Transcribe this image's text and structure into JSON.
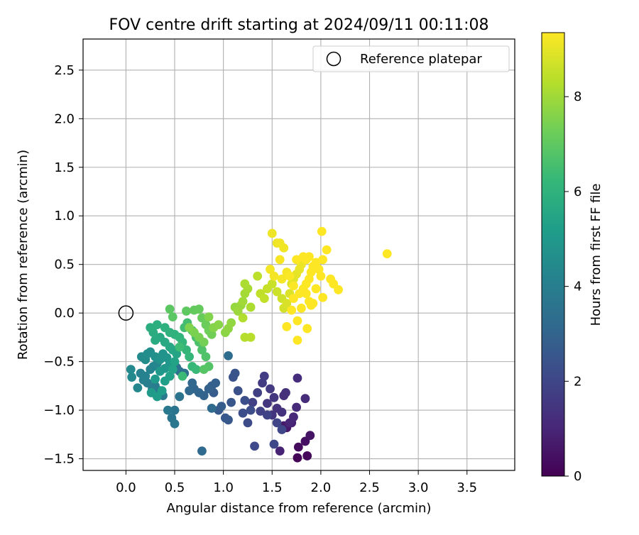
{
  "chart_data": {
    "type": "scatter",
    "title": "FOV centre drift starting at 2024/09/11 00:11:08",
    "xlabel": "Angular distance from reference (arcmin)",
    "ylabel": "Rotation from reference (arcmin)",
    "xlim": [
      -0.44,
      3.99
    ],
    "ylim": [
      -1.62,
      2.82
    ],
    "xticks": [
      0.0,
      0.5,
      1.0,
      1.5,
      2.0,
      2.5,
      3.0,
      3.5
    ],
    "xtick_labels": [
      "0.0",
      "0.5",
      "1.0",
      "1.5",
      "2.0",
      "2.5",
      "3.0",
      "3.5"
    ],
    "yticks": [
      -1.5,
      -1.0,
      -0.5,
      0.0,
      0.5,
      1.0,
      1.5,
      2.0,
      2.5
    ],
    "ytick_labels": [
      "−1.5",
      "−1.0",
      "−0.5",
      "0.0",
      "0.5",
      "1.0",
      "1.5",
      "2.0",
      "2.5"
    ],
    "grid": true,
    "legend": {
      "position": "top-right",
      "entries": [
        "Reference platepar"
      ]
    },
    "reference_point": {
      "x": 0.0,
      "y": 0.0,
      "label": "Reference platepar",
      "marker": "hollow-circle",
      "color": "#000000"
    },
    "colorbar": {
      "label": "Hours from first FF file",
      "range": [
        0,
        9.35
      ],
      "ticks": [
        0,
        2,
        4,
        6,
        8
      ],
      "colormap": "viridis",
      "colors": [
        "#440154",
        "#482878",
        "#3e4989",
        "#31688e",
        "#26828e",
        "#1f9e89",
        "#35b779",
        "#6ece58",
        "#b5de2b",
        "#fde725"
      ]
    },
    "points": [
      [
        1.76,
        -1.49,
        0.1
      ],
      [
        1.86,
        -1.47,
        0.2
      ],
      [
        1.77,
        -1.38,
        0.3
      ],
      [
        1.84,
        -1.32,
        0.4
      ],
      [
        1.89,
        -1.26,
        0.5
      ],
      [
        1.65,
        -1.18,
        0.6
      ],
      [
        1.62,
        -1.16,
        0.7
      ],
      [
        1.7,
        -1.13,
        0.8
      ],
      [
        1.58,
        -1.42,
        0.9
      ],
      [
        1.68,
        -1.13,
        1.0
      ],
      [
        1.72,
        -1.07,
        1.05
      ],
      [
        1.75,
        -0.97,
        1.1
      ],
      [
        1.84,
        -0.88,
        1.15
      ],
      [
        1.76,
        -0.67,
        1.2
      ],
      [
        1.62,
        -0.85,
        1.25
      ],
      [
        1.64,
        -0.82,
        1.3
      ],
      [
        1.6,
        -1.02,
        1.35
      ],
      [
        1.55,
        -0.98,
        1.4
      ],
      [
        1.5,
        -1.05,
        1.45
      ],
      [
        1.45,
        -0.93,
        1.5
      ],
      [
        1.52,
        -0.87,
        1.55
      ],
      [
        1.48,
        -0.78,
        1.6
      ],
      [
        1.4,
        -0.72,
        1.65
      ],
      [
        1.42,
        -0.65,
        1.7
      ],
      [
        1.35,
        -0.82,
        1.75
      ],
      [
        1.3,
        -0.92,
        1.8
      ],
      [
        1.38,
        -1.01,
        1.85
      ],
      [
        1.45,
        -1.05,
        1.9
      ],
      [
        1.55,
        -1.13,
        1.95
      ],
      [
        1.6,
        -1.2,
        2.0
      ],
      [
        1.52,
        -1.35,
        2.05
      ],
      [
        1.32,
        -1.37,
        2.1
      ],
      [
        1.25,
        -1.13,
        2.15
      ],
      [
        1.28,
        -1.0,
        2.2
      ],
      [
        1.2,
        -1.03,
        2.25
      ],
      [
        1.22,
        -0.9,
        2.3
      ],
      [
        1.15,
        -0.8,
        2.35
      ],
      [
        1.1,
        -0.66,
        2.4
      ],
      [
        1.12,
        -0.62,
        2.45
      ],
      [
        1.08,
        -0.92,
        2.5
      ],
      [
        1.05,
        -1.1,
        2.55
      ],
      [
        1.02,
        -1.08,
        2.6
      ],
      [
        0.95,
        -1.0,
        2.65
      ],
      [
        0.98,
        -0.96,
        2.7
      ],
      [
        0.9,
        -0.82,
        2.75
      ],
      [
        0.88,
        -0.75,
        2.8
      ],
      [
        0.92,
        -0.72,
        2.85
      ],
      [
        0.85,
        -0.78,
        2.9
      ],
      [
        0.8,
        -0.85,
        2.95
      ],
      [
        0.75,
        -0.82,
        3.0
      ],
      [
        0.7,
        -0.78,
        3.05
      ],
      [
        0.65,
        -0.8,
        3.1
      ],
      [
        0.68,
        -0.72,
        3.15
      ],
      [
        0.78,
        -1.42,
        3.2
      ],
      [
        0.88,
        -0.98,
        3.25
      ],
      [
        1.05,
        -0.44,
        3.3
      ],
      [
        0.6,
        -0.62,
        3.4
      ],
      [
        0.55,
        -0.6,
        3.45
      ],
      [
        0.52,
        -0.56,
        3.5
      ],
      [
        0.55,
        -0.86,
        3.55
      ],
      [
        0.5,
        -1.0,
        3.6
      ],
      [
        0.47,
        -1.08,
        3.65
      ],
      [
        0.5,
        -1.14,
        3.7
      ],
      [
        0.43,
        -1.0,
        3.75
      ],
      [
        0.38,
        -0.85,
        3.8
      ],
      [
        0.35,
        -0.8,
        3.85
      ],
      [
        0.3,
        -0.75,
        3.9
      ],
      [
        0.27,
        -0.78,
        3.95
      ],
      [
        0.22,
        -0.72,
        4.0
      ],
      [
        0.18,
        -0.69,
        4.05
      ],
      [
        0.15,
        -0.62,
        4.1
      ],
      [
        0.2,
        -0.65,
        4.15
      ],
      [
        0.25,
        -0.58,
        4.2
      ],
      [
        0.28,
        -0.55,
        4.25
      ],
      [
        0.32,
        -0.52,
        4.3
      ],
      [
        0.12,
        -0.77,
        4.35
      ],
      [
        0.06,
        -0.66,
        4.4
      ],
      [
        0.05,
        -0.58,
        4.45
      ],
      [
        0.16,
        -0.45,
        4.5
      ],
      [
        0.2,
        -0.48,
        4.55
      ],
      [
        0.22,
        -0.42,
        4.6
      ],
      [
        0.25,
        -0.4,
        4.65
      ],
      [
        0.3,
        -0.45,
        4.7
      ],
      [
        0.35,
        -0.48,
        4.75
      ],
      [
        0.38,
        -0.42,
        4.8
      ],
      [
        0.42,
        -0.46,
        4.85
      ],
      [
        0.45,
        -0.52,
        4.9
      ],
      [
        0.4,
        -0.57,
        4.95
      ],
      [
        0.35,
        -0.6,
        5.0
      ],
      [
        0.3,
        -0.68,
        5.05
      ],
      [
        0.26,
        -0.82,
        5.1
      ],
      [
        0.32,
        -0.86,
        5.15
      ],
      [
        0.37,
        -0.8,
        5.2
      ],
      [
        0.4,
        -0.7,
        5.25
      ],
      [
        0.45,
        -0.65,
        5.3
      ],
      [
        0.48,
        -0.58,
        5.35
      ],
      [
        0.5,
        -0.5,
        5.4
      ],
      [
        0.52,
        -0.42,
        5.45
      ],
      [
        0.48,
        -0.38,
        5.5
      ],
      [
        0.45,
        -0.35,
        5.55
      ],
      [
        0.4,
        -0.3,
        5.6
      ],
      [
        0.35,
        -0.25,
        5.65
      ],
      [
        0.3,
        -0.28,
        5.7
      ],
      [
        0.28,
        -0.2,
        5.75
      ],
      [
        0.25,
        -0.15,
        5.8
      ],
      [
        0.32,
        -0.12,
        5.85
      ],
      [
        0.4,
        -0.15,
        5.9
      ],
      [
        0.45,
        -0.2,
        5.95
      ],
      [
        0.5,
        -0.22,
        6.0
      ],
      [
        0.55,
        -0.25,
        6.05
      ],
      [
        0.58,
        -0.3,
        6.1
      ],
      [
        0.62,
        -0.38,
        6.15
      ],
      [
        0.65,
        -0.45,
        6.2
      ],
      [
        0.68,
        -0.55,
        6.25
      ],
      [
        0.72,
        -0.58,
        6.3
      ],
      [
        0.58,
        -0.65,
        6.35
      ],
      [
        0.55,
        -0.35,
        6.4
      ],
      [
        0.6,
        -0.15,
        6.45
      ],
      [
        0.63,
        -0.1,
        6.5
      ],
      [
        0.68,
        -0.18,
        6.55
      ],
      [
        0.72,
        -0.25,
        6.6
      ],
      [
        0.75,
        -0.3,
        6.65
      ],
      [
        0.78,
        -0.38,
        6.7
      ],
      [
        0.82,
        -0.45,
        6.75
      ],
      [
        0.85,
        -0.55,
        6.8
      ],
      [
        0.8,
        -0.58,
        6.85
      ],
      [
        0.48,
        -0.04,
        6.9
      ],
      [
        0.45,
        0.04,
        6.95
      ],
      [
        0.62,
        0.02,
        7.0
      ],
      [
        0.7,
        0.03,
        7.05
      ],
      [
        0.75,
        0.04,
        7.1
      ],
      [
        0.78,
        -0.05,
        7.15
      ],
      [
        0.82,
        -0.12,
        7.2
      ],
      [
        0.85,
        -0.18,
        7.25
      ],
      [
        0.88,
        -0.22,
        7.3
      ],
      [
        0.8,
        -0.3,
        7.35
      ],
      [
        0.75,
        -0.25,
        7.4
      ],
      [
        0.7,
        -0.2,
        7.45
      ],
      [
        0.65,
        -0.15,
        7.5
      ],
      [
        0.85,
        -0.04,
        7.55
      ],
      [
        0.9,
        -0.15,
        7.6
      ],
      [
        0.95,
        -0.12,
        7.65
      ],
      [
        1.02,
        -0.2,
        7.7
      ],
      [
        1.05,
        -0.16,
        7.75
      ],
      [
        1.08,
        -0.1,
        7.8
      ],
      [
        1.12,
        0.06,
        7.85
      ],
      [
        1.18,
        0.08,
        7.9
      ],
      [
        1.15,
        0.02,
        7.95
      ],
      [
        1.2,
        0.12,
        8.0
      ],
      [
        1.22,
        0.2,
        8.05
      ],
      [
        1.25,
        0.25,
        8.1
      ],
      [
        1.22,
        0.3,
        8.15
      ],
      [
        1.28,
        0.06,
        8.2
      ],
      [
        1.2,
        -0.05,
        8.25
      ],
      [
        1.22,
        -0.25,
        8.3
      ],
      [
        1.28,
        -0.25,
        8.35
      ],
      [
        1.35,
        0.38,
        8.4
      ],
      [
        1.38,
        0.2,
        8.45
      ],
      [
        1.42,
        0.15,
        8.5
      ],
      [
        1.45,
        0.25,
        8.55
      ],
      [
        1.5,
        0.3,
        8.6
      ],
      [
        1.55,
        0.22,
        8.65
      ],
      [
        1.6,
        0.15,
        8.7
      ],
      [
        1.62,
        0.05,
        8.75
      ],
      [
        1.65,
        0.1,
        8.8
      ],
      [
        1.68,
        0.2,
        8.85
      ],
      [
        1.7,
        0.3,
        8.9
      ],
      [
        1.72,
        0.35,
        8.95
      ],
      [
        1.75,
        0.4,
        9.0
      ],
      [
        1.78,
        0.45,
        9.05
      ],
      [
        1.8,
        0.5,
        9.1
      ],
      [
        1.5,
        0.82,
        9.12
      ],
      [
        1.55,
        0.72,
        9.14
      ],
      [
        1.58,
        0.72,
        9.16
      ],
      [
        1.62,
        0.67,
        9.18
      ],
      [
        1.48,
        0.45,
        9.2
      ],
      [
        1.52,
        0.38,
        9.22
      ],
      [
        1.6,
        0.35,
        9.24
      ],
      [
        1.65,
        0.42,
        9.26
      ],
      [
        1.58,
        0.55,
        9.28
      ],
      [
        1.68,
        0.38,
        9.3
      ],
      [
        1.72,
        0.28,
        9.31
      ],
      [
        1.78,
        0.2,
        9.32
      ],
      [
        1.82,
        0.25,
        9.33
      ],
      [
        1.85,
        0.3,
        9.34
      ],
      [
        1.88,
        0.35,
        9.35
      ],
      [
        1.9,
        0.42,
        9.35
      ],
      [
        1.92,
        0.48,
        9.35
      ],
      [
        1.95,
        0.52,
        9.35
      ],
      [
        1.98,
        0.45,
        9.35
      ],
      [
        2.0,
        0.38,
        9.35
      ],
      [
        2.02,
        0.55,
        9.35
      ],
      [
        2.06,
        0.65,
        9.35
      ],
      [
        2.01,
        0.84,
        9.35
      ],
      [
        2.1,
        0.35,
        9.35
      ],
      [
        2.13,
        0.3,
        9.35
      ],
      [
        2.18,
        0.24,
        9.35
      ],
      [
        2.02,
        0.16,
        9.35
      ],
      [
        1.9,
        0.08,
        9.35
      ],
      [
        1.88,
        0.12,
        9.35
      ],
      [
        1.85,
        0.2,
        9.35
      ],
      [
        1.8,
        0.05,
        9.35
      ],
      [
        1.76,
        -0.08,
        9.35
      ],
      [
        1.7,
        0.03,
        9.35
      ],
      [
        1.65,
        -0.14,
        9.35
      ],
      [
        1.76,
        -0.28,
        9.35
      ],
      [
        1.86,
        -0.16,
        9.35
      ],
      [
        1.82,
        0.58,
        9.35
      ],
      [
        1.88,
        0.58,
        9.35
      ],
      [
        1.85,
        0.55,
        9.35
      ],
      [
        1.75,
        0.55,
        9.35
      ],
      [
        2.68,
        0.61,
        9.35
      ],
      [
        1.92,
        0.1,
        9.35
      ],
      [
        1.95,
        0.25,
        9.35
      ],
      [
        1.72,
        0.15,
        9.35
      ]
    ]
  }
}
